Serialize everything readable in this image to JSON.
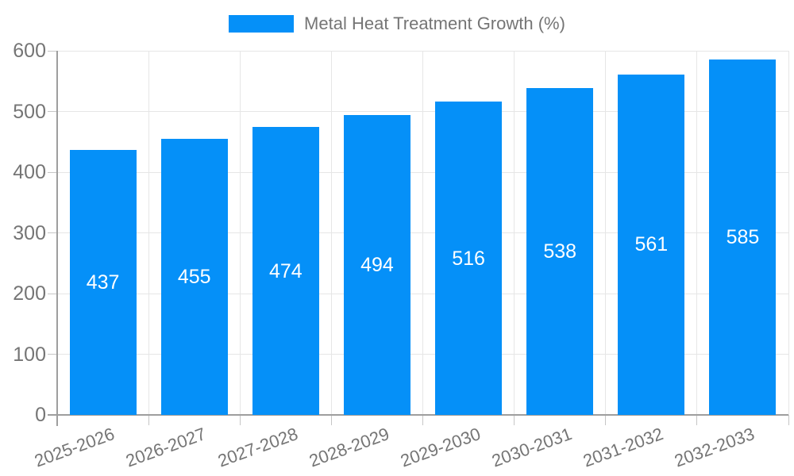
{
  "legend": {
    "label": "Metal Heat Treatment Growth (%)"
  },
  "chart_data": {
    "type": "bar",
    "title": "Metal Heat Treatment Growth (%)",
    "xlabel": "",
    "ylabel": "",
    "categories": [
      "2025-2026",
      "2026-2027",
      "2027-2028",
      "2028-2029",
      "2029-2030",
      "2030-2031",
      "2031-2032",
      "2032-2033"
    ],
    "series": [
      {
        "name": "Metal Heat Treatment Growth (%)",
        "values": [
          437,
          455,
          474,
          494,
          516,
          538,
          561,
          585
        ]
      }
    ],
    "ylim": [
      0,
      600
    ],
    "yticks": [
      0,
      100,
      200,
      300,
      400,
      500,
      600
    ],
    "grid": true,
    "legend_position": "top-center",
    "bar_labels_visible": true,
    "colors": {
      "bar": "#0590f8",
      "bar_value_text": "#ffffff",
      "axis_text": "#757575",
      "legend_text": "#757575",
      "axis_line": "#9e9e9e",
      "gridline": "#e6e6e6",
      "background": "#ffffff"
    }
  }
}
